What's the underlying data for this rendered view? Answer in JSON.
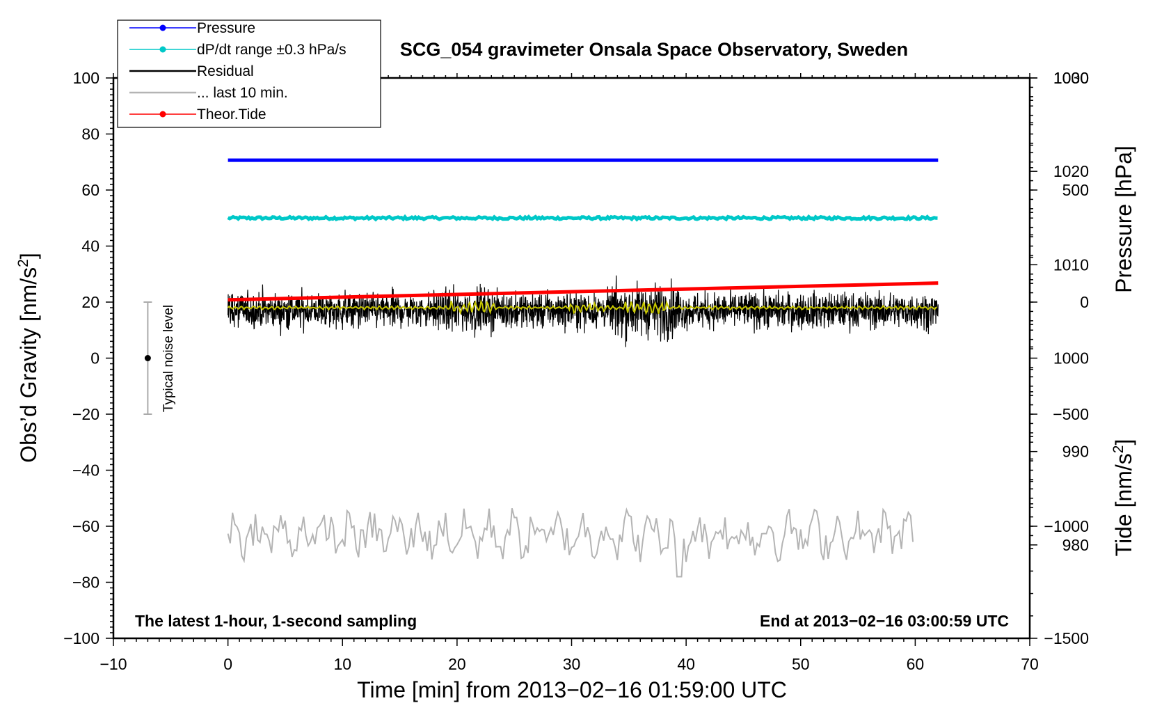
{
  "chart_data": {
    "type": "line",
    "title": "SCG_054 gravimeter Onsala Space Observatory, Sweden",
    "xlabel": "Time [min] from 2013−02−16 01:59:00 UTC",
    "xlim": [
      -10,
      70
    ],
    "xticks": [
      -10,
      0,
      10,
      20,
      30,
      40,
      50,
      60,
      70
    ],
    "xtick_labels": [
      "−10",
      "0",
      "10",
      "20",
      "30",
      "40",
      "50",
      "60",
      "70"
    ],
    "left_axis": {
      "label_main": "Obs’d Gravity [nm/s",
      "label_sup": "2",
      "label_end": "]",
      "ylim": [
        -100,
        100
      ],
      "ticks": [
        -100,
        -80,
        -60,
        -40,
        -20,
        0,
        20,
        40,
        60,
        80,
        100
      ],
      "tick_labels": [
        "−100",
        "−80",
        "−60",
        "−40",
        "−20",
        "0",
        "20",
        "40",
        "60",
        "80",
        "100"
      ]
    },
    "pressure_axis": {
      "label": "Pressure [hPa]",
      "ylim": [
        970,
        1030
      ],
      "ticks": [
        980,
        990,
        1000,
        1010,
        1020,
        1030
      ],
      "tick_labels": [
        "980",
        "990",
        "1000",
        "1010",
        "1020",
        "1030"
      ]
    },
    "tide_axis": {
      "label_main": "Tide [nm/s",
      "label_sup": "2",
      "label_end": "]",
      "ylim": [
        -1500,
        1000
      ],
      "ticks": [
        -1500,
        -1000,
        -500,
        0,
        500,
        1000
      ],
      "tick_labels": [
        "−1500",
        "−1000",
        "−500",
        "0",
        "500",
        "1000"
      ]
    },
    "series": [
      {
        "name": "Pressure",
        "color": "#0000ff",
        "axis": "pressure",
        "x_range": [
          0,
          62
        ],
        "approx_value": 1021.2
      },
      {
        "name": "dP/dt range ±0.3 hPa/s",
        "color": "#00c8c8",
        "axis": "left",
        "x_range": [
          0,
          62
        ],
        "approx_value": 50
      },
      {
        "name": "Residual",
        "color": "#000000",
        "axis": "left",
        "x_range": [
          0,
          62
        ],
        "approx_mean": 17,
        "approx_min": -3,
        "approx_max": 37
      },
      {
        "name": "Residual smoothed",
        "color": "#c8c800",
        "axis": "left",
        "x_range": [
          0,
          62
        ],
        "approx_mean": 18
      },
      {
        "name": "... last 10 min.",
        "color": "#b4b4b4",
        "axis": "left",
        "x_range": [
          0,
          60
        ],
        "approx_mean": -63,
        "approx_min": -78,
        "approx_max": -49
      },
      {
        "name": "Theor.Tide",
        "color": "#ff0000",
        "axis": "tide",
        "x_range": [
          0,
          62
        ],
        "start_value": 10,
        "end_value": 85
      }
    ],
    "legend": {
      "position": "top-left",
      "items": [
        {
          "label": "Pressure",
          "color": "#0000ff",
          "marker": true
        },
        {
          "label": "dP/dt range ±0.3 hPa/s",
          "color": "#00c8c8",
          "marker": true
        },
        {
          "label": "Residual",
          "color": "#000000",
          "marker": false
        },
        {
          "label": "... last 10 min.",
          "color": "#b4b4b4",
          "marker": false
        },
        {
          "label": "Theor.Tide",
          "color": "#ff0000",
          "marker": true
        }
      ]
    },
    "annotations": {
      "noise_label": "Typical noise level",
      "noise_x": -7,
      "noise_range": [
        -20,
        20
      ],
      "note_left": "The latest 1-hour, 1-second sampling",
      "note_right": "End at 2013−02−16 03:00:59 UTC"
    }
  }
}
